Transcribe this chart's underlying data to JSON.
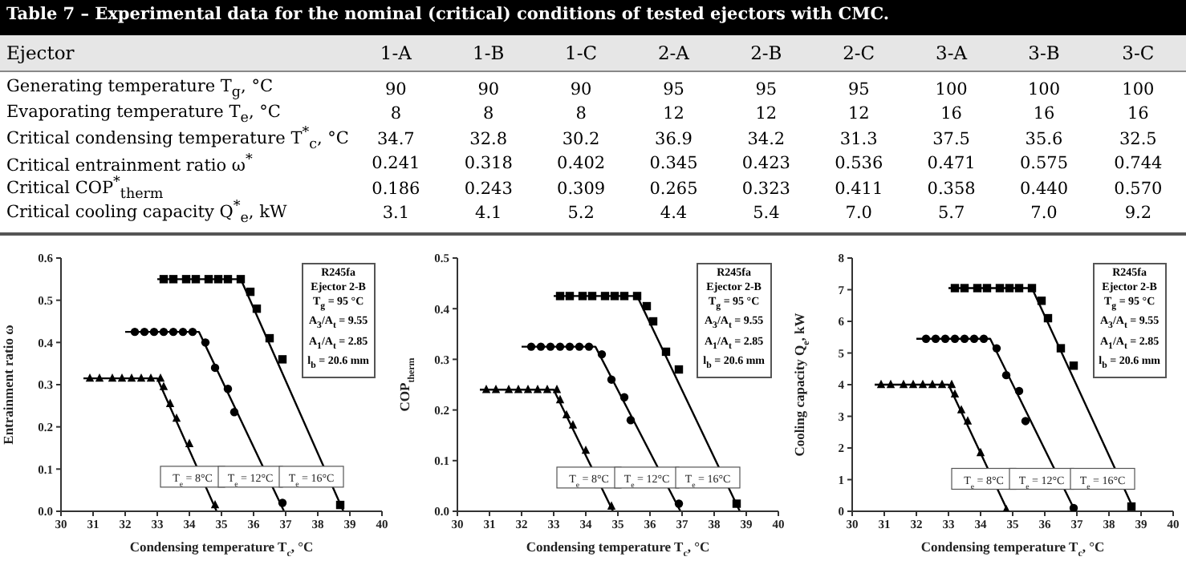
{
  "chart_data": [
    {
      "type": "other",
      "title": "Table 7 – Experimental data for the nominal (critical) conditions of tested ejectors with CMC.",
      "annotations": [
        "Ejector",
        "1-A",
        "1-B",
        "1-C",
        "2-A",
        "2-B",
        "2-C",
        "3-A",
        "3-B",
        "3-C",
        "Generating temperature T$_{g}$, °C",
        "90",
        "90",
        "90",
        "95",
        "95",
        "95",
        "100",
        "100",
        "100",
        "Evaporating temperature T$_{e}$, °C",
        "8",
        "8",
        "8",
        "12",
        "12",
        "12",
        "16",
        "16",
        "16",
        "Critical condensing temperature T$^{*}$$_{c}$, °C",
        "34.7",
        "32.8",
        "30.2",
        "36.9",
        "34.2",
        "31.3",
        "37.5",
        "35.6",
        "32.5",
        "Critical entrainment ratio ω$^{*}$",
        "0.241",
        "0.318",
        "0.402",
        "0.345",
        "0.423",
        "0.536",
        "0.471",
        "0.575",
        "0.744",
        "Critical COP$^{*}$$_{therm}$",
        "0.186",
        "0.243",
        "0.309",
        "0.265",
        "0.323",
        "0.411",
        "0.358",
        "0.440",
        "0.570",
        "Critical cooling capacity Q$^{*}$$_{e}$, kW",
        "3.1",
        "4.1",
        "5.2",
        "4.4",
        "5.4",
        "7.0",
        "5.7",
        "7.0",
        "9.2"
      ]
    },
    {
      "type": "scatter",
      "xlabel": "Condensing temperature T$_{c}$, °C",
      "ylabel": "Entrainment ratio ω",
      "xlim": [
        30,
        40
      ],
      "xticks": [
        30,
        31,
        32,
        33,
        34,
        35,
        36,
        37,
        38,
        39,
        40
      ],
      "ylim": [
        0,
        0.6
      ],
      "yticks": [
        {
          "value": 0,
          "label": "0.0"
        },
        0.1,
        0.2,
        0.3,
        0.4,
        0.5,
        0.6
      ],
      "annotations": [
        "R245fa",
        "Ejector 2-B",
        "T$_{g}$ = 95 °C",
        "A$_{3}$/A$_{t}$ = 9.55",
        "A$_{1}$/A$_{t}$ = 2.85",
        "l$_{b}$ = 20.6 mm",
        {
          "text": "T$_{e}$ = 8°C",
          "x": 34.1,
          "y": 0.08
        },
        {
          "text": "T$_{e}$ = 12°C",
          "x": 35.9,
          "y": 0.08
        },
        {
          "text": "T$_{e}$ = 16°C",
          "x": 37.8,
          "y": 0.08
        }
      ],
      "series": [
        {
          "type": "scatter",
          "marker": "triangle",
          "color": "#000000",
          "x": [
            30.9,
            31.2,
            31.6,
            31.9,
            32.2,
            32.5,
            32.8,
            33.1,
            33.2,
            33.4,
            33.6,
            34.0,
            34.8
          ],
          "values": [
            0.315,
            0.315,
            0.315,
            0.315,
            0.315,
            0.315,
            0.315,
            0.315,
            0.295,
            0.255,
            0.22,
            0.16,
            0.015
          ]
        },
        {
          "type": "scatter",
          "marker": "circle",
          "color": "#000000",
          "x": [
            32.3,
            32.6,
            32.9,
            33.2,
            33.5,
            33.8,
            34.1,
            34.5,
            34.8,
            35.2,
            35.4,
            36.9
          ],
          "values": [
            0.425,
            0.425,
            0.425,
            0.425,
            0.425,
            0.425,
            0.425,
            0.4,
            0.34,
            0.29,
            0.235,
            0.02
          ]
        },
        {
          "type": "scatter",
          "marker": "square",
          "color": "#000000",
          "x": [
            33.2,
            33.5,
            33.9,
            34.2,
            34.6,
            34.9,
            35.2,
            35.6,
            35.9,
            36.1,
            36.5,
            36.9,
            38.7
          ],
          "values": [
            0.55,
            0.55,
            0.55,
            0.55,
            0.55,
            0.55,
            0.55,
            0.55,
            0.52,
            0.48,
            0.41,
            0.36,
            0.015
          ]
        },
        {
          "type": "line",
          "marker": "none",
          "color": "#000000",
          "x": [
            30.7,
            33.0,
            34.85
          ],
          "values": [
            0.315,
            0.315,
            0
          ]
        },
        {
          "type": "line",
          "marker": "none",
          "color": "#000000",
          "x": [
            32.0,
            34.3,
            36.95
          ],
          "values": [
            0.425,
            0.425,
            0
          ]
        },
        {
          "type": "line",
          "marker": "none",
          "color": "#000000",
          "x": [
            33.0,
            35.6,
            38.8
          ],
          "values": [
            0.55,
            0.55,
            0
          ]
        }
      ]
    },
    {
      "type": "scatter",
      "xlabel": "Condensing temperature T$_{c}$, °C",
      "ylabel": "COP$_{therm}$",
      "xlim": [
        30,
        40
      ],
      "xticks": [
        30,
        31,
        32,
        33,
        34,
        35,
        36,
        37,
        38,
        39,
        40
      ],
      "ylim": [
        0,
        0.5
      ],
      "yticks": [
        {
          "value": 0,
          "label": "0.0"
        },
        0.1,
        0.2,
        0.3,
        0.4,
        0.5
      ],
      "annotations": [
        "R245fa",
        "Ejector 2-B",
        "T$_{g}$ = 95 °C",
        "A$_{3}$/A$_{t}$ = 9.55",
        "A$_{1}$/A$_{t}$ = 2.85",
        "l$_{b}$ = 20.6 mm",
        {
          "text": "T$_{e}$ = 8°C",
          "x": 34.1,
          "y": 0.065
        },
        {
          "text": "T$_{e}$ = 12°C",
          "x": 35.9,
          "y": 0.065
        },
        {
          "text": "T$_{e}$ = 16°C",
          "x": 37.8,
          "y": 0.065
        }
      ],
      "series": [
        {
          "type": "scatter",
          "marker": "triangle",
          "color": "#000000",
          "x": [
            30.9,
            31.2,
            31.6,
            31.9,
            32.2,
            32.5,
            32.8,
            33.1,
            33.2,
            33.4,
            33.6,
            34.0,
            34.8
          ],
          "values": [
            0.24,
            0.24,
            0.24,
            0.24,
            0.24,
            0.24,
            0.24,
            0.24,
            0.22,
            0.19,
            0.17,
            0.12,
            0.01
          ]
        },
        {
          "type": "scatter",
          "marker": "circle",
          "color": "#000000",
          "x": [
            32.3,
            32.6,
            32.9,
            33.2,
            33.5,
            33.8,
            34.1,
            34.5,
            34.8,
            35.2,
            35.4,
            36.9
          ],
          "values": [
            0.325,
            0.325,
            0.325,
            0.325,
            0.325,
            0.325,
            0.325,
            0.31,
            0.26,
            0.225,
            0.18,
            0.015
          ]
        },
        {
          "type": "scatter",
          "marker": "square",
          "color": "#000000",
          "x": [
            33.2,
            33.5,
            33.9,
            34.2,
            34.6,
            34.9,
            35.2,
            35.6,
            35.9,
            36.1,
            36.5,
            36.9,
            38.7
          ],
          "values": [
            0.425,
            0.425,
            0.425,
            0.425,
            0.425,
            0.425,
            0.425,
            0.425,
            0.405,
            0.375,
            0.315,
            0.28,
            0.015
          ]
        },
        {
          "type": "line",
          "marker": "none",
          "color": "#000000",
          "x": [
            30.7,
            33.0,
            34.85
          ],
          "values": [
            0.24,
            0.24,
            0
          ]
        },
        {
          "type": "line",
          "marker": "none",
          "color": "#000000",
          "x": [
            32.0,
            34.3,
            36.95
          ],
          "values": [
            0.325,
            0.325,
            0
          ]
        },
        {
          "type": "line",
          "marker": "none",
          "color": "#000000",
          "x": [
            33.0,
            35.6,
            38.8
          ],
          "values": [
            0.425,
            0.425,
            0
          ]
        }
      ]
    },
    {
      "type": "scatter",
      "xlabel": "Condensing temperature T$_{c}$, °C",
      "ylabel": "Cooling capacity Q$_{e}$, kW",
      "xlim": [
        30,
        40
      ],
      "xticks": [
        30,
        31,
        32,
        33,
        34,
        35,
        36,
        37,
        38,
        39,
        40
      ],
      "ylim": [
        0,
        8
      ],
      "yticks": [
        0,
        1,
        2,
        3,
        4,
        5,
        6,
        7,
        8
      ],
      "annotations": [
        "R245fa",
        "Ejector 2-B",
        "T$_{g}$ = 95 °C",
        "A$_{3}$/A$_{t}$ = 9.55",
        "A$_{1}$/A$_{t}$ = 2.85",
        "l$_{b}$ = 20.6 mm",
        {
          "text": "T$_{e}$ = 8°C",
          "x": 34.1,
          "y": 1.0
        },
        {
          "text": "T$_{e}$ = 12°C",
          "x": 35.9,
          "y": 1.0
        },
        {
          "text": "T$_{e}$ = 16°C",
          "x": 37.8,
          "y": 1.0
        }
      ],
      "series": [
        {
          "type": "scatter",
          "marker": "triangle",
          "color": "#000000",
          "x": [
            30.9,
            31.2,
            31.6,
            31.9,
            32.2,
            32.5,
            32.8,
            33.1,
            33.2,
            33.4,
            33.6,
            34.0,
            34.8
          ],
          "values": [
            4.0,
            4.0,
            4.0,
            4.0,
            4.0,
            4.0,
            4.0,
            4.0,
            3.7,
            3.2,
            2.85,
            1.85,
            0.05
          ]
        },
        {
          "type": "scatter",
          "marker": "circle",
          "color": "#000000",
          "x": [
            32.3,
            32.6,
            32.9,
            33.2,
            33.5,
            33.8,
            34.1,
            34.5,
            34.8,
            35.2,
            35.4,
            36.9
          ],
          "values": [
            5.45,
            5.45,
            5.45,
            5.45,
            5.45,
            5.45,
            5.45,
            5.15,
            4.3,
            3.8,
            2.85,
            0.1
          ]
        },
        {
          "type": "scatter",
          "marker": "square",
          "color": "#000000",
          "x": [
            33.2,
            33.5,
            33.9,
            34.2,
            34.6,
            34.9,
            35.2,
            35.6,
            35.9,
            36.1,
            36.5,
            36.9,
            38.7
          ],
          "values": [
            7.05,
            7.05,
            7.05,
            7.05,
            7.05,
            7.05,
            7.05,
            7.05,
            6.65,
            6.1,
            5.15,
            4.6,
            0.15
          ]
        },
        {
          "type": "line",
          "marker": "none",
          "color": "#000000",
          "x": [
            30.7,
            33.0,
            34.85
          ],
          "values": [
            4.0,
            4.0,
            0
          ]
        },
        {
          "type": "line",
          "marker": "none",
          "color": "#000000",
          "x": [
            32.0,
            34.3,
            36.95
          ],
          "values": [
            5.45,
            5.45,
            0
          ]
        },
        {
          "type": "line",
          "marker": "none",
          "color": "#000000",
          "x": [
            33.0,
            35.6,
            38.8
          ],
          "values": [
            7.05,
            7.05,
            0
          ]
        }
      ]
    }
  ]
}
